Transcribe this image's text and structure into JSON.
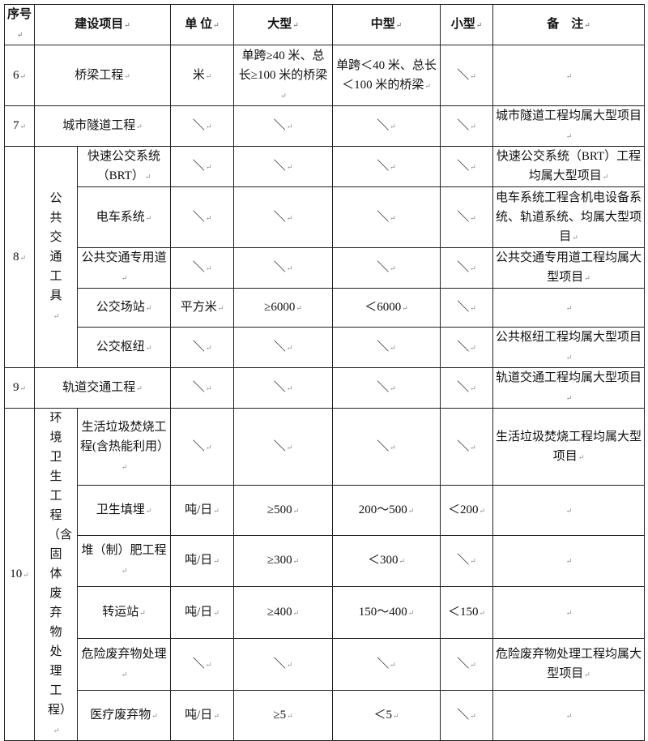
{
  "header": {
    "seq": "序号",
    "item": "建设项目",
    "unit": "单 位",
    "large": "大型",
    "medium": "中型",
    "small": "小型",
    "note": "备　注"
  },
  "groups": [
    {
      "seq": "6",
      "rows": [
        {
          "item": "桥梁工程",
          "unit": "米",
          "large": "单跨≥40 米、总长≥100 米的桥梁",
          "medium": "单跨＜40 米、总长＜100 米的桥梁",
          "small": "＼",
          "note": ""
        }
      ]
    },
    {
      "seq": "7",
      "rows": [
        {
          "item": "城市隧道工程",
          "unit": "＼",
          "large": "＼",
          "medium": "＼",
          "small": "＼",
          "note": "城市隧道工程均属大型项目"
        }
      ]
    },
    {
      "seq": "8",
      "category": "公共交通工具",
      "rows": [
        {
          "item": "快速公交系统（BRT）",
          "unit": "＼",
          "large": "＼",
          "medium": "＼",
          "small": "＼",
          "note": "快速公交系统（BRT）工程均属大型项目"
        },
        {
          "item": "电车系统",
          "unit": "＼",
          "large": "＼",
          "medium": "＼",
          "small": "＼",
          "note": "电车系统工程含机电设备系统、轨道系统、均属大型项目"
        },
        {
          "item": "公共交通专用道",
          "unit": "＼",
          "large": "＼",
          "medium": "＼",
          "small": "＼",
          "note": "公共交通专用道工程均属大型项目"
        },
        {
          "item": "公交场站",
          "unit": "平方米",
          "large": "≥6000",
          "medium": "＜6000",
          "small": "＼",
          "note": ""
        },
        {
          "item": "公交枢纽",
          "unit": "＼",
          "large": "＼",
          "medium": "＼",
          "small": "＼",
          "note": "公共枢纽工程均属大型项目"
        }
      ]
    },
    {
      "seq": "9",
      "rows": [
        {
          "item": "轨道交通工程",
          "unit": "＼",
          "large": "＼",
          "medium": "＼",
          "small": "＼",
          "note": "轨道交通工程均属大型项目"
        }
      ]
    },
    {
      "seq": "10",
      "category": "环境卫生工程（含固体废弃物处理工程）",
      "rows": [
        {
          "item": "生活垃圾焚烧工程(含热能利用）",
          "unit": "＼",
          "large": "＼",
          "medium": "＼",
          "small": "＼",
          "note": "生活垃圾焚烧工程均属大型项目"
        },
        {
          "item": "卫生填埋",
          "unit": "吨/日",
          "large": "≥500",
          "medium": "200～500",
          "small": "＜200",
          "note": ""
        },
        {
          "item": "堆（制）肥工程",
          "unit": "吨/日",
          "large": "≥300",
          "medium": "＜300",
          "small": "＼",
          "note": ""
        },
        {
          "item": "转运站",
          "unit": "吨/日",
          "large": "≥400",
          "medium": "150～400",
          "small": "＜150",
          "note": ""
        },
        {
          "item": "危险废弃物处理",
          "unit": "＼",
          "large": "＼",
          "medium": "＼",
          "small": "＼",
          "note": "危险废弃物处理工程均属大型项目"
        },
        {
          "item": "医疗废弃物",
          "unit": "吨/日",
          "large": "≥5",
          "medium": "＜5",
          "small": "＼",
          "note": ""
        }
      ]
    }
  ]
}
